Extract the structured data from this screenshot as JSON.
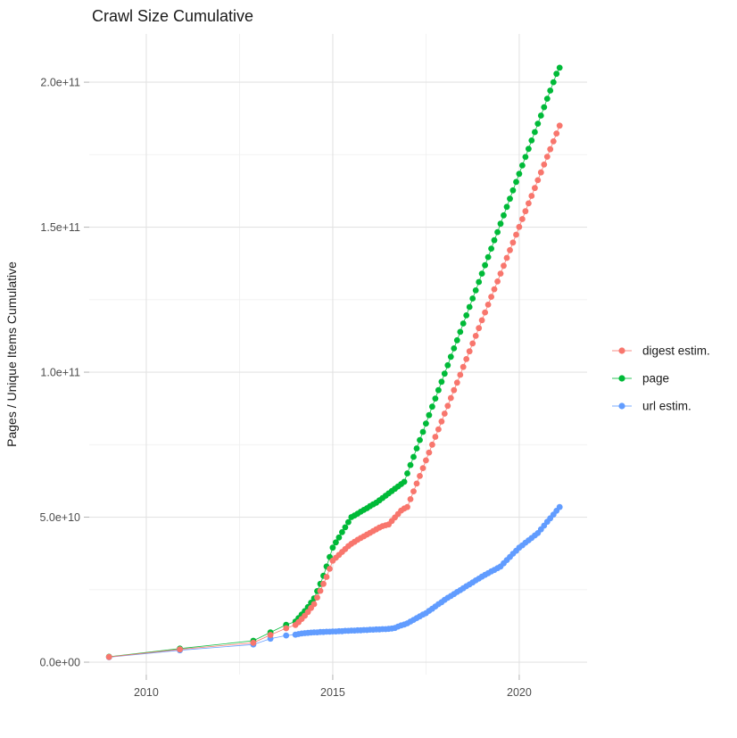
{
  "title": "Crawl Size Cumulative",
  "colors": {
    "digest": "#F8766D",
    "page": "#00BA38",
    "url": "#619CFF",
    "grid_major": "#e3e3e3",
    "grid_minor": "#f0f0f0",
    "tick_mark": "#b3b3b3",
    "axis_text": "#4d4d4d",
    "title_text": "#1a1a1a",
    "background": "#ffffff"
  },
  "chart_data": {
    "type": "line",
    "title": "Crawl Size Cumulative",
    "xlabel": "",
    "ylabel": "Pages / Unique Items Cumulative",
    "legend_position": "right",
    "grid": true,
    "value_unit": 1000000000,
    "xlim": [
      2008.47,
      2021.82
    ],
    "ylim_units": [
      -4.3,
      216.65
    ],
    "x_ticks": [
      2010,
      2015,
      2020
    ],
    "x_tick_labels": [
      "2010",
      "2015",
      "2020"
    ],
    "x_minor_ticks": [
      2012.5,
      2017.5
    ],
    "y_ticks_units": [
      0,
      50,
      100,
      150,
      200
    ],
    "y_tick_labels": [
      "0.0e+00",
      "5.0e+10",
      "1.0e+11",
      "1.5e+11",
      "2.0e+11"
    ],
    "y_minor_ticks_units": [
      25,
      75,
      125,
      175
    ],
    "series": [
      {
        "name": "digest estim.",
        "color": "#F8766D",
        "points": [
          [
            2009.0,
            1.8
          ],
          [
            2010.9,
            4.4
          ],
          [
            2012.87,
            6.7
          ],
          [
            2013.33,
            9.4
          ],
          [
            2013.75,
            11.7
          ],
          [
            2014.0,
            12.8
          ],
          [
            2014.083,
            13.8
          ],
          [
            2014.167,
            14.9
          ],
          [
            2014.25,
            16.0
          ],
          [
            2014.333,
            17.3
          ],
          [
            2014.417,
            18.7
          ],
          [
            2014.5,
            20.0
          ],
          [
            2014.583,
            22.3
          ],
          [
            2014.667,
            24.6
          ],
          [
            2014.75,
            27.0
          ],
          [
            2014.833,
            29.4
          ],
          [
            2014.917,
            32.2
          ],
          [
            2015.0,
            35.0
          ],
          [
            2015.083,
            36.0
          ],
          [
            2015.167,
            37.0
          ],
          [
            2015.25,
            38.0
          ],
          [
            2015.333,
            39.0
          ],
          [
            2015.417,
            40.0
          ],
          [
            2015.5,
            40.8
          ],
          [
            2015.583,
            41.5
          ],
          [
            2015.667,
            42.2
          ],
          [
            2015.75,
            42.8
          ],
          [
            2015.833,
            43.4
          ],
          [
            2015.917,
            44.0
          ],
          [
            2016.0,
            44.6
          ],
          [
            2016.083,
            45.2
          ],
          [
            2016.167,
            45.8
          ],
          [
            2016.25,
            46.4
          ],
          [
            2016.333,
            46.9
          ],
          [
            2016.417,
            47.2
          ],
          [
            2016.5,
            47.5
          ],
          [
            2016.583,
            48.7
          ],
          [
            2016.667,
            49.9
          ],
          [
            2016.75,
            51.1
          ],
          [
            2016.833,
            52.3
          ],
          [
            2016.917,
            53.0
          ],
          [
            2017.0,
            53.5
          ],
          [
            2017.083,
            56.2
          ],
          [
            2017.167,
            58.9
          ],
          [
            2017.25,
            61.6
          ],
          [
            2017.333,
            64.2
          ],
          [
            2017.417,
            66.9
          ],
          [
            2017.5,
            69.6
          ],
          [
            2017.583,
            72.3
          ],
          [
            2017.667,
            75.0
          ],
          [
            2017.75,
            77.7
          ],
          [
            2017.833,
            80.3
          ],
          [
            2017.917,
            83.0
          ],
          [
            2018.0,
            85.7
          ],
          [
            2018.083,
            88.4
          ],
          [
            2018.167,
            91.1
          ],
          [
            2018.25,
            93.8
          ],
          [
            2018.333,
            96.4
          ],
          [
            2018.417,
            99.1
          ],
          [
            2018.5,
            101.8
          ],
          [
            2018.583,
            104.5
          ],
          [
            2018.667,
            107.2
          ],
          [
            2018.75,
            109.9
          ],
          [
            2018.833,
            112.5
          ],
          [
            2018.917,
            115.2
          ],
          [
            2019.0,
            117.9
          ],
          [
            2019.083,
            120.6
          ],
          [
            2019.167,
            123.3
          ],
          [
            2019.25,
            126.0
          ],
          [
            2019.333,
            128.6
          ],
          [
            2019.417,
            131.3
          ],
          [
            2019.5,
            134.0
          ],
          [
            2019.583,
            136.7
          ],
          [
            2019.667,
            139.4
          ],
          [
            2019.75,
            142.1
          ],
          [
            2019.833,
            144.7
          ],
          [
            2019.917,
            147.4
          ],
          [
            2020.0,
            150.1
          ],
          [
            2020.083,
            152.8
          ],
          [
            2020.167,
            155.5
          ],
          [
            2020.25,
            158.2
          ],
          [
            2020.333,
            160.8
          ],
          [
            2020.417,
            163.5
          ],
          [
            2020.5,
            166.2
          ],
          [
            2020.583,
            168.9
          ],
          [
            2020.667,
            171.6
          ],
          [
            2020.75,
            174.3
          ],
          [
            2020.833,
            176.9
          ],
          [
            2020.917,
            179.6
          ],
          [
            2021.0,
            182.3
          ],
          [
            2021.083,
            185.0
          ]
        ]
      },
      {
        "name": "page",
        "color": "#00BA38",
        "points": [
          [
            2009.0,
            1.9
          ],
          [
            2010.9,
            4.7
          ],
          [
            2012.87,
            7.4
          ],
          [
            2013.33,
            10.3
          ],
          [
            2013.75,
            12.9
          ],
          [
            2014.0,
            14.0
          ],
          [
            2014.083,
            15.2
          ],
          [
            2014.167,
            16.4
          ],
          [
            2014.25,
            17.6
          ],
          [
            2014.333,
            19.0
          ],
          [
            2014.417,
            20.5
          ],
          [
            2014.5,
            22.0
          ],
          [
            2014.583,
            24.5
          ],
          [
            2014.667,
            27.0
          ],
          [
            2014.75,
            29.8
          ],
          [
            2014.833,
            33.0
          ],
          [
            2014.917,
            36.3
          ],
          [
            2015.0,
            39.5
          ],
          [
            2015.083,
            41.3
          ],
          [
            2015.167,
            43.0
          ],
          [
            2015.25,
            44.8
          ],
          [
            2015.333,
            46.5
          ],
          [
            2015.417,
            48.3
          ],
          [
            2015.5,
            50.0
          ],
          [
            2015.583,
            50.6
          ],
          [
            2015.667,
            51.2
          ],
          [
            2015.75,
            51.9
          ],
          [
            2015.833,
            52.5
          ],
          [
            2015.917,
            53.1
          ],
          [
            2016.0,
            53.8
          ],
          [
            2016.083,
            54.4
          ],
          [
            2016.167,
            55.0
          ],
          [
            2016.25,
            55.8
          ],
          [
            2016.333,
            56.6
          ],
          [
            2016.417,
            57.4
          ],
          [
            2016.5,
            58.2
          ],
          [
            2016.583,
            59.0
          ],
          [
            2016.667,
            59.8
          ],
          [
            2016.75,
            60.6
          ],
          [
            2016.833,
            61.4
          ],
          [
            2016.917,
            62.2
          ],
          [
            2017.0,
            65.1
          ],
          [
            2017.083,
            68.0
          ],
          [
            2017.167,
            70.8
          ],
          [
            2017.25,
            73.7
          ],
          [
            2017.333,
            76.6
          ],
          [
            2017.417,
            79.4
          ],
          [
            2017.5,
            82.3
          ],
          [
            2017.583,
            85.2
          ],
          [
            2017.667,
            88.1
          ],
          [
            2017.75,
            90.9
          ],
          [
            2017.833,
            93.8
          ],
          [
            2017.917,
            96.7
          ],
          [
            2018.0,
            99.5
          ],
          [
            2018.083,
            102.4
          ],
          [
            2018.167,
            105.3
          ],
          [
            2018.25,
            108.2
          ],
          [
            2018.333,
            111.0
          ],
          [
            2018.417,
            113.9
          ],
          [
            2018.5,
            116.8
          ],
          [
            2018.583,
            119.6
          ],
          [
            2018.667,
            122.5
          ],
          [
            2018.75,
            125.4
          ],
          [
            2018.833,
            128.2
          ],
          [
            2018.917,
            131.1
          ],
          [
            2019.0,
            134.0
          ],
          [
            2019.083,
            136.9
          ],
          [
            2019.167,
            139.7
          ],
          [
            2019.25,
            142.6
          ],
          [
            2019.333,
            145.5
          ],
          [
            2019.417,
            148.3
          ],
          [
            2019.5,
            151.2
          ],
          [
            2019.583,
            154.1
          ],
          [
            2019.667,
            157.0
          ],
          [
            2019.75,
            159.8
          ],
          [
            2019.833,
            162.7
          ],
          [
            2019.917,
            165.6
          ],
          [
            2020.0,
            168.4
          ],
          [
            2020.083,
            171.3
          ],
          [
            2020.167,
            174.2
          ],
          [
            2020.25,
            177.0
          ],
          [
            2020.333,
            179.9
          ],
          [
            2020.417,
            182.8
          ],
          [
            2020.5,
            185.7
          ],
          [
            2020.583,
            188.5
          ],
          [
            2020.667,
            191.4
          ],
          [
            2020.75,
            194.3
          ],
          [
            2020.833,
            197.1
          ],
          [
            2020.917,
            200.0
          ],
          [
            2021.0,
            202.9
          ],
          [
            2021.083,
            205.0
          ]
        ]
      },
      {
        "name": "url estim.",
        "color": "#619CFF",
        "points": [
          [
            2009.0,
            1.7
          ],
          [
            2010.9,
            4.1
          ],
          [
            2012.87,
            6.1
          ],
          [
            2013.33,
            8.1
          ],
          [
            2013.75,
            9.2
          ],
          [
            2014.0,
            9.5
          ],
          [
            2014.083,
            9.7
          ],
          [
            2014.167,
            9.9
          ],
          [
            2014.25,
            10.0
          ],
          [
            2014.333,
            10.1
          ],
          [
            2014.417,
            10.2
          ],
          [
            2014.5,
            10.3
          ],
          [
            2014.583,
            10.3
          ],
          [
            2014.667,
            10.4
          ],
          [
            2014.75,
            10.4
          ],
          [
            2014.833,
            10.5
          ],
          [
            2014.917,
            10.5
          ],
          [
            2015.0,
            10.6
          ],
          [
            2015.083,
            10.6
          ],
          [
            2015.167,
            10.7
          ],
          [
            2015.25,
            10.7
          ],
          [
            2015.333,
            10.8
          ],
          [
            2015.417,
            10.8
          ],
          [
            2015.5,
            10.9
          ],
          [
            2015.583,
            10.9
          ],
          [
            2015.667,
            11.0
          ],
          [
            2015.75,
            11.0
          ],
          [
            2015.833,
            11.1
          ],
          [
            2015.917,
            11.1
          ],
          [
            2016.0,
            11.2
          ],
          [
            2016.083,
            11.2
          ],
          [
            2016.167,
            11.3
          ],
          [
            2016.25,
            11.3
          ],
          [
            2016.333,
            11.4
          ],
          [
            2016.417,
            11.4
          ],
          [
            2016.5,
            11.5
          ],
          [
            2016.583,
            11.6
          ],
          [
            2016.667,
            11.8
          ],
          [
            2016.75,
            12.3
          ],
          [
            2016.833,
            12.7
          ],
          [
            2016.917,
            13.0
          ],
          [
            2017.0,
            13.4
          ],
          [
            2017.083,
            14.0
          ],
          [
            2017.167,
            14.6
          ],
          [
            2017.25,
            15.2
          ],
          [
            2017.333,
            15.8
          ],
          [
            2017.417,
            16.4
          ],
          [
            2017.5,
            16.9
          ],
          [
            2017.583,
            17.7
          ],
          [
            2017.667,
            18.4
          ],
          [
            2017.75,
            19.2
          ],
          [
            2017.833,
            20.0
          ],
          [
            2017.917,
            20.7
          ],
          [
            2018.0,
            21.5
          ],
          [
            2018.083,
            22.2
          ],
          [
            2018.167,
            22.8
          ],
          [
            2018.25,
            23.5
          ],
          [
            2018.333,
            24.2
          ],
          [
            2018.417,
            24.8
          ],
          [
            2018.5,
            25.5
          ],
          [
            2018.583,
            26.2
          ],
          [
            2018.667,
            26.8
          ],
          [
            2018.75,
            27.5
          ],
          [
            2018.833,
            28.2
          ],
          [
            2018.917,
            28.8
          ],
          [
            2019.0,
            29.5
          ],
          [
            2019.083,
            30.1
          ],
          [
            2019.167,
            30.7
          ],
          [
            2019.25,
            31.3
          ],
          [
            2019.333,
            31.8
          ],
          [
            2019.417,
            32.4
          ],
          [
            2019.5,
            33.0
          ],
          [
            2019.583,
            34.1
          ],
          [
            2019.667,
            35.2
          ],
          [
            2019.75,
            36.3
          ],
          [
            2019.833,
            37.4
          ],
          [
            2019.917,
            38.4
          ],
          [
            2020.0,
            39.5
          ],
          [
            2020.083,
            40.3
          ],
          [
            2020.167,
            41.2
          ],
          [
            2020.25,
            42.0
          ],
          [
            2020.333,
            42.8
          ],
          [
            2020.417,
            43.7
          ],
          [
            2020.5,
            44.5
          ],
          [
            2020.583,
            45.8
          ],
          [
            2020.667,
            47.1
          ],
          [
            2020.75,
            48.4
          ],
          [
            2020.833,
            49.6
          ],
          [
            2020.917,
            50.9
          ],
          [
            2021.0,
            52.2
          ],
          [
            2021.083,
            53.5
          ]
        ]
      }
    ]
  },
  "legend": {
    "items": [
      "digest estim.",
      "page",
      "url estim."
    ]
  }
}
